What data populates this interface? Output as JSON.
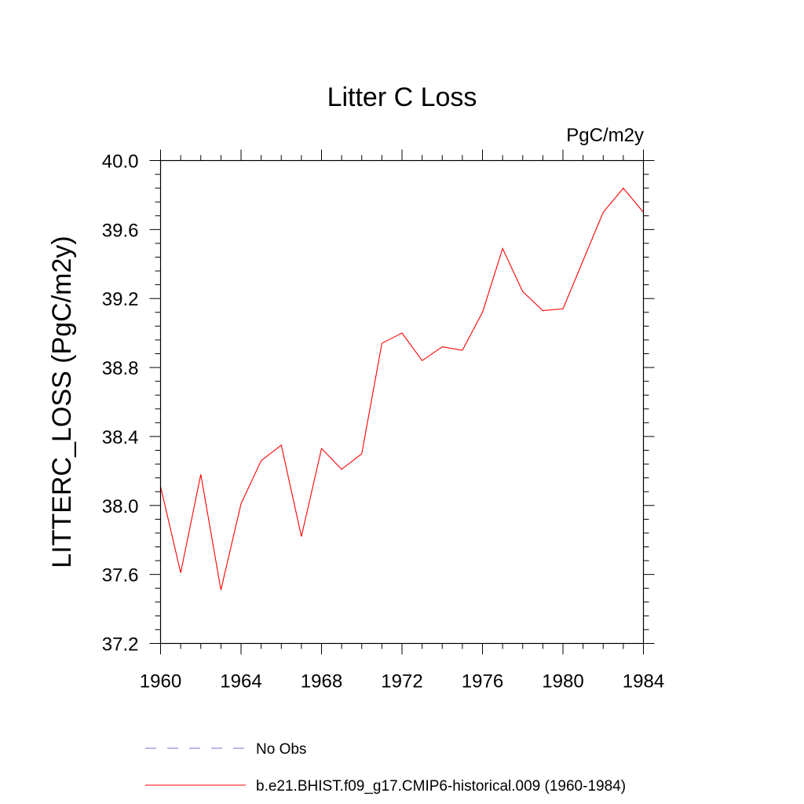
{
  "chart_data": {
    "type": "line",
    "title": "Litter C Loss",
    "units_label": "PgC/m2y",
    "xlabel": "",
    "ylabel": "LITTERC_LOSS  (PgC/m2y)",
    "xlim": [
      1960,
      1984
    ],
    "ylim": [
      37.2,
      40.0
    ],
    "x_ticks": [
      1960,
      1964,
      1968,
      1972,
      1976,
      1980,
      1984
    ],
    "y_ticks": [
      37.2,
      37.6,
      38.0,
      38.4,
      38.8,
      39.2,
      39.6,
      40.0
    ],
    "x_tick_labels": [
      "1960",
      "1964",
      "1968",
      "1972",
      "1976",
      "1980",
      "1984"
    ],
    "y_tick_labels": [
      "37.2",
      "37.6",
      "38.0",
      "38.4",
      "38.8",
      "39.2",
      "39.6",
      "40.0"
    ],
    "grid": false,
    "legend_position": "bottom",
    "series": [
      {
        "name": "No Obs",
        "color": "#7a6fd0",
        "dash": "dashed",
        "x": [],
        "y": []
      },
      {
        "name": "b.e21.BHIST.f09_g17.CMIP6-historical.009 (1960-1984)",
        "color": "#ff0000",
        "dash": "solid",
        "x": [
          1960,
          1961,
          1962,
          1963,
          1964,
          1965,
          1966,
          1967,
          1968,
          1969,
          1970,
          1971,
          1972,
          1973,
          1974,
          1975,
          1976,
          1977,
          1978,
          1979,
          1980,
          1981,
          1982,
          1983,
          1984
        ],
        "y": [
          38.11,
          37.61,
          38.18,
          37.51,
          38.01,
          38.26,
          38.35,
          37.82,
          38.33,
          38.21,
          38.3,
          38.94,
          39.0,
          38.84,
          38.92,
          38.9,
          39.12,
          39.49,
          39.24,
          39.13,
          39.14,
          39.42,
          39.7,
          39.84,
          39.7
        ]
      }
    ]
  }
}
